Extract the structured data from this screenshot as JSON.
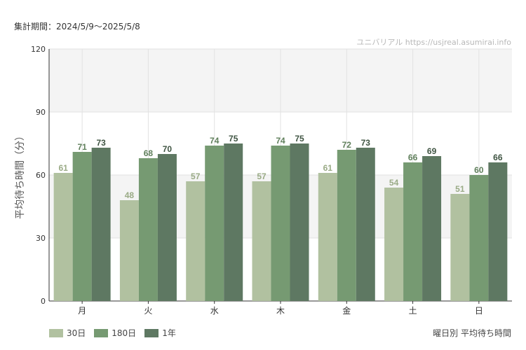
{
  "header": {
    "period": "集計期間：2024/5/9〜2025/5/8",
    "watermark": "ユニバリアル  https://usjreal.asumirai.info"
  },
  "footer": {
    "caption": "曜日別 平均待ち時間"
  },
  "colors": {
    "s30": "#b1c1a0",
    "s180": "#769a72",
    "s1y": "#5e7862",
    "band": "#f4f4f4",
    "grid": "#e2e2e2"
  },
  "chart_data": {
    "type": "bar",
    "title": "",
    "ylabel": "平均待ち時間（分）",
    "xlabel": "",
    "ylim": [
      0,
      120
    ],
    "yticks": [
      0,
      30,
      60,
      90,
      120
    ],
    "categories": [
      "月",
      "火",
      "水",
      "木",
      "金",
      "土",
      "日"
    ],
    "series": [
      {
        "name": "30日",
        "values": [
          61,
          48,
          57,
          57,
          61,
          54,
          51
        ]
      },
      {
        "name": "180日",
        "values": [
          71,
          68,
          74,
          74,
          72,
          66,
          60
        ]
      },
      {
        "name": "1年",
        "values": [
          73,
          70,
          75,
          75,
          73,
          69,
          66
        ]
      }
    ],
    "legend_position": "bottom-left",
    "grid": true
  }
}
